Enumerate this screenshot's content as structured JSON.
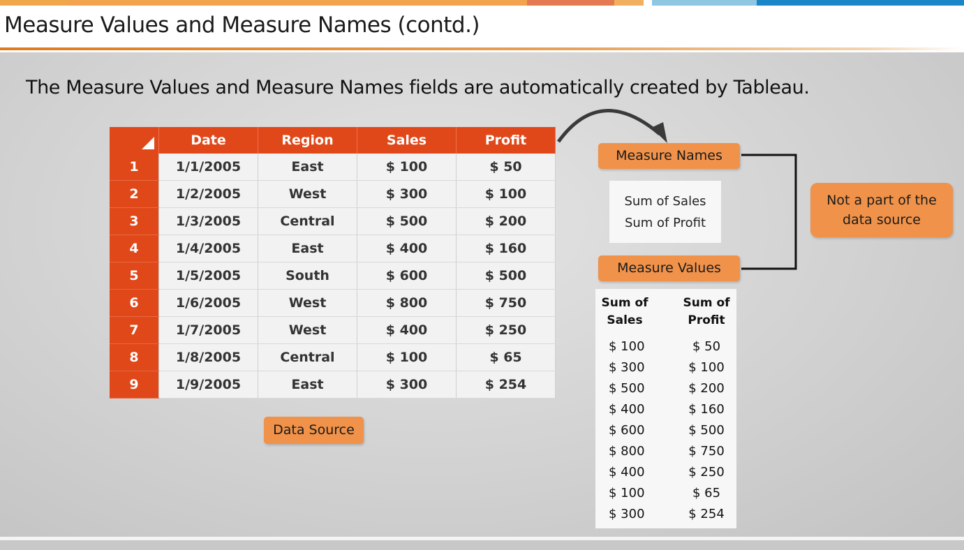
{
  "slide": {
    "title": "Measure Values and Measure Names (contd.)",
    "subtitle": "The Measure Values and Measure Names fields are automatically created by Tableau."
  },
  "colors": {
    "accent_orange": "#e0481a",
    "pill_orange": "#f0924a",
    "title_rule": "#e07a1c",
    "top_bar_blue": "#1a86c8"
  },
  "data_source_table": {
    "headers": [
      "Date",
      "Region",
      "Sales",
      "Profit"
    ],
    "rows": [
      {
        "n": "1",
        "date": "1/1/2005",
        "region": "East",
        "sales": "$ 100",
        "profit": "$ 50"
      },
      {
        "n": "2",
        "date": "1/2/2005",
        "region": "West",
        "sales": "$ 300",
        "profit": "$ 100"
      },
      {
        "n": "3",
        "date": "1/3/2005",
        "region": "Central",
        "sales": "$ 500",
        "profit": "$ 200"
      },
      {
        "n": "4",
        "date": "1/4/2005",
        "region": "East",
        "sales": "$ 400",
        "profit": "$ 160"
      },
      {
        "n": "5",
        "date": "1/5/2005",
        "region": "South",
        "sales": "$ 600",
        "profit": "$ 500"
      },
      {
        "n": "6",
        "date": "1/6/2005",
        "region": "West",
        "sales": "$ 800",
        "profit": "$ 750"
      },
      {
        "n": "7",
        "date": "1/7/2005",
        "region": "West",
        "sales": "$ 400",
        "profit": "$ 250"
      },
      {
        "n": "8",
        "date": "1/8/2005",
        "region": "Central",
        "sales": "$ 100",
        "profit": "$ 65"
      },
      {
        "n": "9",
        "date": "1/9/2005",
        "region": "East",
        "sales": "$ 300",
        "profit": "$ 254"
      }
    ],
    "label": "Data Source"
  },
  "measure_names": {
    "label": "Measure Names",
    "items": [
      "Sum of Sales",
      "Sum of Profit"
    ]
  },
  "measure_values": {
    "label": "Measure Values",
    "col1_header_line1": "Sum of",
    "col1_header_line2": "Sales",
    "col2_header_line1": "Sum of",
    "col2_header_line2": "Profit",
    "sales": [
      "$ 100",
      "$ 300",
      "$ 500",
      "$ 400",
      "$ 600",
      "$ 800",
      "$ 400",
      "$ 100",
      "$ 300"
    ],
    "profit": [
      "$ 50",
      "$ 100",
      "$ 200",
      "$ 160",
      "$ 500",
      "$ 750",
      "$ 250",
      "$ 65",
      "$ 254"
    ]
  },
  "note": {
    "line1": "Not a part of the",
    "line2": "data source"
  }
}
